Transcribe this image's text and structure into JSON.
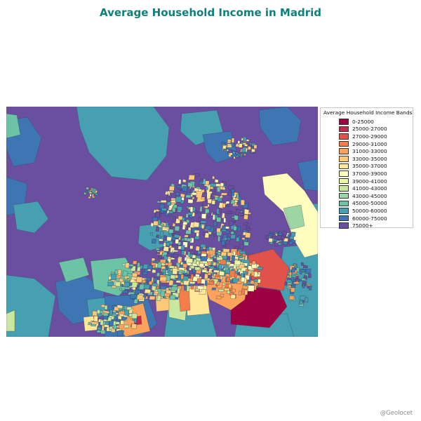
{
  "title": "Average Household Income in Madrid",
  "legend": {
    "title": "Average Household Income Bands",
    "items": [
      {
        "label": "0-25000",
        "color": "#9e0142"
      },
      {
        "label": "25000-27000",
        "color": "#c2294a"
      },
      {
        "label": "27000-29000",
        "color": "#e1524a"
      },
      {
        "label": "29000-31000",
        "color": "#f57d4a"
      },
      {
        "label": "31000-33000",
        "color": "#fba35c"
      },
      {
        "label": "33000-35000",
        "color": "#fdc978"
      },
      {
        "label": "35000-37000",
        "color": "#fee898"
      },
      {
        "label": "37000-39000",
        "color": "#fffebe"
      },
      {
        "label": "39000-41000",
        "color": "#edf8a3"
      },
      {
        "label": "41000-43000",
        "color": "#c7e89e"
      },
      {
        "label": "43000-45000",
        "color": "#9dd6a4"
      },
      {
        "label": "45000-50000",
        "color": "#6cc3a5"
      },
      {
        "label": "50000-60000",
        "color": "#46a0b1"
      },
      {
        "label": "60000-75000",
        "color": "#3e75b3"
      },
      {
        "label": "75000+",
        "color": "#6a4fa1"
      }
    ]
  },
  "credit": "@Geolocet"
}
